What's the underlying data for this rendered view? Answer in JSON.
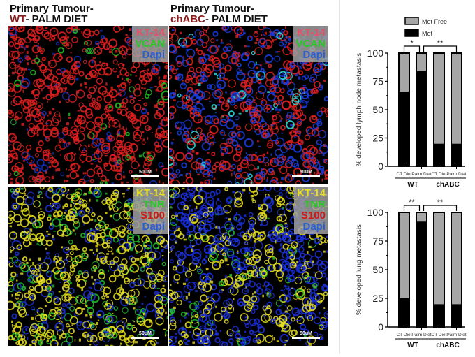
{
  "titles": [
    {
      "line1": "Primary Tumour-",
      "genotype": "WT",
      "rest": "- PALM DIET"
    },
    {
      "line1": "Primary Tumour-",
      "genotype": "chABC",
      "rest": "- PALM DIET"
    }
  ],
  "panels": [
    {
      "stains": [
        {
          "label": "KT-14",
          "color": "#e8506a"
        },
        {
          "label": "VCAN",
          "color": "#22cc22"
        },
        {
          "label": "Dapi",
          "color": "#2a5fd0"
        }
      ],
      "scale": "50uM",
      "dominant": "red"
    },
    {
      "stains": [
        {
          "label": "KT-14",
          "color": "#e8506a"
        },
        {
          "label": "VCAN",
          "color": "#22cc22"
        },
        {
          "label": "Dapi",
          "color": "#2a5fd0"
        }
      ],
      "scale": "50uM",
      "dominant": "red-blue"
    },
    {
      "stains": [
        {
          "label": "KT-14",
          "color": "#e8e020"
        },
        {
          "label": "TNR",
          "color": "#22cc22"
        },
        {
          "label": "S100",
          "color": "#cc1818"
        },
        {
          "label": "Dapi",
          "color": "#2a5fd0"
        }
      ],
      "scale": "50uM",
      "dominant": "yellow-green"
    },
    {
      "stains": [
        {
          "label": "KT-14",
          "color": "#e8e020"
        },
        {
          "label": "TNR",
          "color": "#22cc22"
        },
        {
          "label": "S100",
          "color": "#cc1818"
        },
        {
          "label": "Dapi",
          "color": "#2a5fd0"
        }
      ],
      "scale": "50uM",
      "dominant": "blue-yellow"
    }
  ],
  "legend": [
    {
      "label": "Met Free",
      "color": "#a6a6a6"
    },
    {
      "label": "Met",
      "color": "#000000"
    }
  ],
  "chart_data": [
    {
      "type": "bar",
      "stacked": true,
      "ylabel": "% developed lymph node metastasis",
      "ylim": [
        0,
        100
      ],
      "yticks": [
        0,
        25,
        50,
        75,
        100
      ],
      "categories": [
        "CT Diet",
        "Palm Diet",
        "CT Diet",
        "Palm Diet"
      ],
      "groups": [
        {
          "label": "WT",
          "members": [
            0,
            1
          ]
        },
        {
          "label": "chABC",
          "members": [
            2,
            3
          ]
        }
      ],
      "series": [
        {
          "name": "Met",
          "color": "#000000",
          "values": [
            66,
            84,
            20,
            20
          ]
        },
        {
          "name": "Met Free",
          "color": "#a6a6a6",
          "values": [
            34,
            16,
            80,
            80
          ]
        }
      ],
      "significance": [
        {
          "from": 0,
          "to": 1,
          "label": "*"
        },
        {
          "from": 1,
          "to": 3,
          "label": "**"
        }
      ]
    },
    {
      "type": "bar",
      "stacked": true,
      "ylabel": "% developed lung  metastasis",
      "ylim": [
        0,
        100
      ],
      "yticks": [
        0,
        25,
        50,
        75,
        100
      ],
      "categories": [
        "CT Diet",
        "Palm Diet",
        "CT Diet",
        "Palm Diet"
      ],
      "groups": [
        {
          "label": "WT",
          "members": [
            0,
            1
          ]
        },
        {
          "label": "chABC",
          "members": [
            2,
            3
          ]
        }
      ],
      "series": [
        {
          "name": "Met",
          "color": "#000000",
          "values": [
            25,
            92,
            20,
            20
          ]
        },
        {
          "name": "Met Free",
          "color": "#a6a6a6",
          "values": [
            75,
            8,
            80,
            80
          ]
        }
      ],
      "significance": [
        {
          "from": 0,
          "to": 1,
          "label": "**"
        },
        {
          "from": 1,
          "to": 3,
          "label": "**"
        }
      ]
    }
  ]
}
